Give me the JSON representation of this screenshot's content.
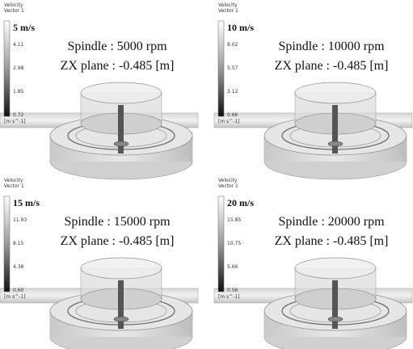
{
  "panels": [
    {
      "legend": {
        "title": "Velocity",
        "subtitle": "Vector 1",
        "max_label": "5 m/s",
        "ticks": [
          "4.11",
          "2.98",
          "1.85",
          "0.72"
        ],
        "unit": "[m s^-1]"
      },
      "spindle": "Spindle : 5000 rpm",
      "plane": "ZX plane : -0.485 [m]"
    },
    {
      "legend": {
        "title": "Velocity",
        "subtitle": "Vector 1",
        "max_label": "10 m/s",
        "ticks": [
          "8.02",
          "5.57",
          "3.12",
          "0.66"
        ],
        "unit": "[m s^-1]"
      },
      "spindle": "Spindle : 10000 rpm",
      "plane": "ZX plane : -0.485 [m]"
    },
    {
      "legend": {
        "title": "Velocity",
        "subtitle": "Vector 1",
        "max_label": "15 m/s",
        "ticks": [
          "11.93",
          "8.15",
          "4.38",
          "0.60"
        ],
        "unit": "[m s^-1]"
      },
      "spindle": "Spindle : 15000 rpm",
      "plane": "ZX plane : -0.485 [m]"
    },
    {
      "legend": {
        "title": "Velocity",
        "subtitle": "Vector 1",
        "max_label": "20 m/s",
        "ticks": [
          "15.85",
          "10.75",
          "5.66",
          "0.56"
        ],
        "unit": "[m s^-1]"
      },
      "spindle": "Spindle : 20000 rpm",
      "plane": "ZX plane : -0.485 [m]"
    }
  ]
}
